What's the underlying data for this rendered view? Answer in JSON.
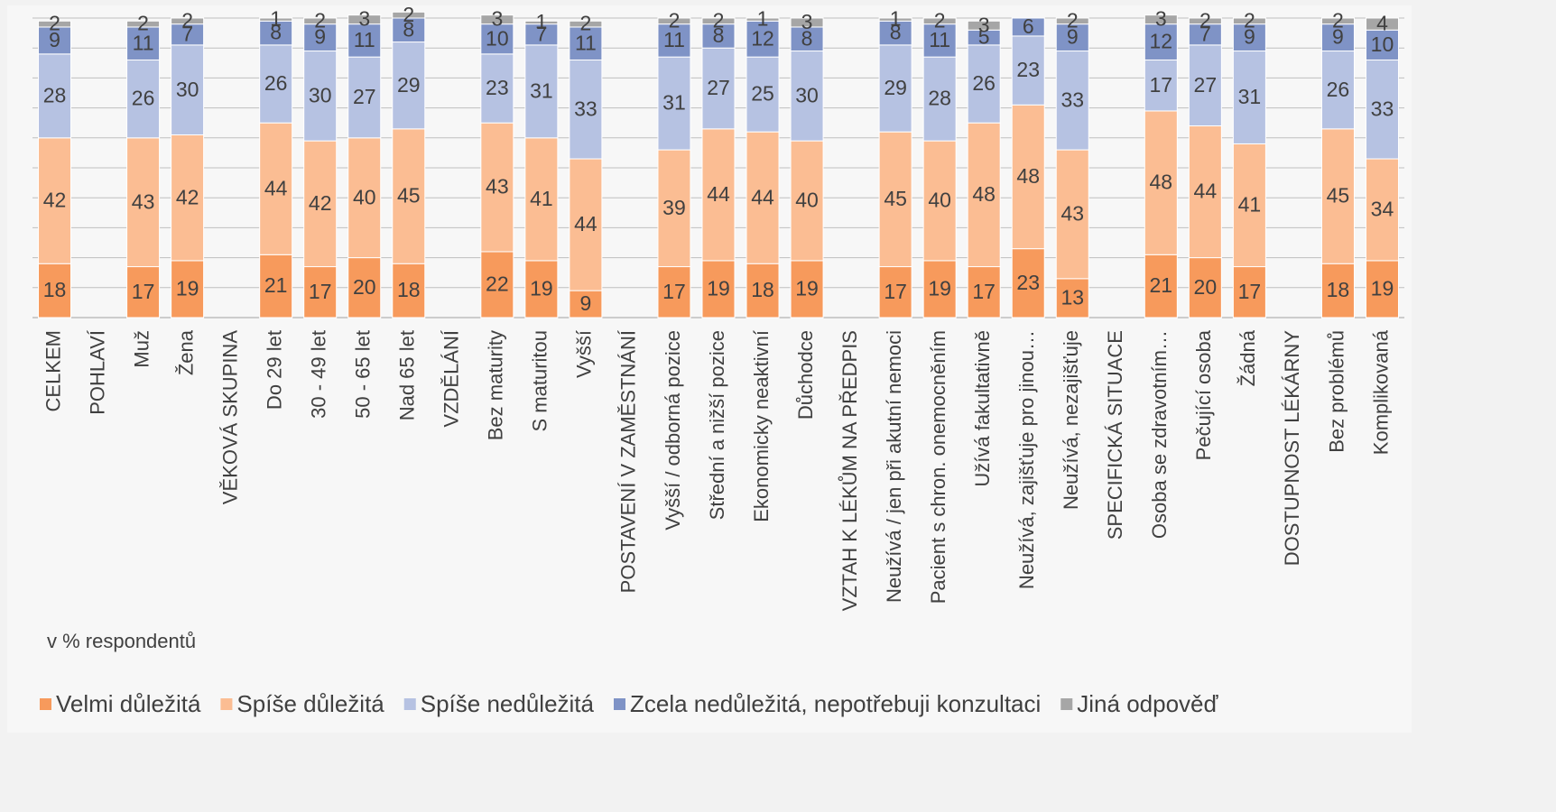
{
  "chart_data": {
    "type": "stacked_bar",
    "annotation": "v % respondentů",
    "categories": [
      "CELKEM",
      "POHLAVÍ",
      "Muž",
      "Žena",
      "VĚKOVÁ SKUPINA",
      "Do 29 let",
      "30 - 49 let",
      "50 - 65 let",
      "Nad 65 let",
      "VZDĚLÁNÍ",
      "Bez maturity",
      "S maturitou",
      "Vyšší",
      "POSTAVENÍ V ZAMĚSTNÁNÍ",
      "Vyšší / odborná pozice",
      "Střední a nižší pozice",
      "Ekonomicky neaktivní",
      "Důchodce",
      "VZTAH K LÉKŮM NA PŘEDPIS",
      "Neužívá / jen při akutní nemoci",
      "Pacient s chron. onemocněním",
      "Užívá fakultativně",
      "Neužívá, zajišťuje pro jinou…",
      "Neužívá, nezajišťuje",
      "SPECIFICKÁ SITUACE",
      "Osoba se zdravotním…",
      "Pečující osoba",
      "Žádná",
      "DOSTUPNOST LÉKÁRNY",
      "Bez problémů",
      "Komplikovaná"
    ],
    "series": [
      {
        "name": "Velmi důležitá",
        "color": "#f79a5c",
        "values": [
          18,
          null,
          17,
          19,
          null,
          21,
          17,
          20,
          18,
          null,
          22,
          19,
          9,
          null,
          17,
          19,
          18,
          19,
          null,
          17,
          19,
          17,
          23,
          13,
          null,
          21,
          20,
          17,
          null,
          18,
          19
        ]
      },
      {
        "name": "Spíše důležitá",
        "color": "#fbbd93",
        "values": [
          42,
          null,
          43,
          42,
          null,
          44,
          42,
          40,
          45,
          null,
          43,
          41,
          44,
          null,
          39,
          44,
          44,
          40,
          null,
          45,
          40,
          48,
          48,
          43,
          null,
          48,
          44,
          41,
          null,
          45,
          34
        ]
      },
      {
        "name": "Spíše nedůležitá",
        "color": "#b6c2e2",
        "values": [
          28,
          null,
          26,
          30,
          null,
          26,
          30,
          27,
          29,
          null,
          23,
          31,
          33,
          null,
          31,
          27,
          25,
          30,
          null,
          29,
          28,
          26,
          23,
          33,
          null,
          17,
          27,
          31,
          null,
          26,
          33
        ]
      },
      {
        "name": "Zcela nedůležitá, nepotřebuji konzultaci",
        "color": "#7f93c6",
        "values": [
          9,
          null,
          11,
          7,
          null,
          8,
          9,
          11,
          8,
          null,
          10,
          7,
          11,
          null,
          11,
          8,
          12,
          8,
          null,
          8,
          11,
          5,
          6,
          9,
          null,
          12,
          7,
          9,
          null,
          9,
          10
        ]
      },
      {
        "name": "Jiná odpověď",
        "color": "#a6a6a6",
        "values": [
          2,
          null,
          2,
          2,
          null,
          1,
          2,
          3,
          2,
          null,
          3,
          1,
          2,
          null,
          2,
          2,
          1,
          3,
          null,
          1,
          2,
          3,
          null,
          2,
          null,
          3,
          2,
          2,
          null,
          2,
          4
        ]
      }
    ],
    "ylim": [
      0,
      100
    ],
    "yticks": [
      0,
      10,
      20,
      30,
      40,
      50,
      60,
      70,
      80,
      90,
      100
    ],
    "grid": true
  }
}
